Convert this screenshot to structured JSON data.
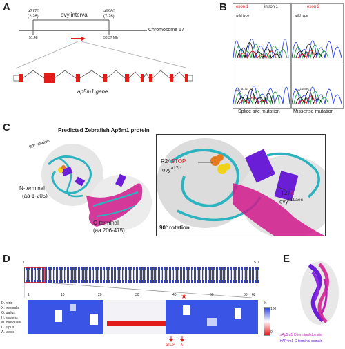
{
  "panelA": {
    "label": "A",
    "marker_left": "a7170",
    "marker_left_sub": "(2/26)",
    "marker_left_pos": "51.48",
    "interval_label": "ovy interval",
    "marker_right": "a9980",
    "marker_right_sub": "(7/26)",
    "marker_right_pos": "58.37 Mb",
    "chromosome": "Chromosome 17",
    "gene_label": "ap5m1 gene"
  },
  "panelB": {
    "label": "B",
    "exon1": "exon 1",
    "intron1": "intron 1",
    "exon2": "exon 2",
    "wild_type_1": "wild type",
    "wild_type_2": "wild type",
    "mut_1": "ovy",
    "mut_1_sup": "a17c",
    "mut_2": "ovy",
    "mut_2_sup": "c19aec",
    "caption_left": "Splice site mutation",
    "caption_right": "Missense mutation"
  },
  "panelC": {
    "label": "C",
    "title": "Predicted Zebrafish Ap5m1 protein",
    "rotation_small": "90º rotation",
    "n_terminal": "N-terminal",
    "n_range": "(aa 1-205)",
    "c_terminal": "C-terminal",
    "c_range": "(aa 206-475)",
    "r24_a": "R24",
    "r24_b": "STOP",
    "r24_mut": "ovy",
    "r24_sup": "a17c",
    "t27_a": "T27",
    "t27_b": "K",
    "t27_mut": "ovy",
    "t27_sup": "c19aec",
    "rotation_big": "90º rotation"
  },
  "panelD": {
    "label": "D",
    "left_end": "1",
    "right_end": "511",
    "ticks": [
      "1",
      "10",
      "20",
      "30",
      "40",
      "50",
      "60",
      "62"
    ],
    "species": [
      "D. rerio",
      "X. tropicalis",
      "G. gallus",
      "H. sapiens",
      "M. musculus",
      "C. lupus",
      "A. laevis"
    ],
    "stop_label": "STOP",
    "k_label": "K",
    "percent": "%",
    "scale_top": "100",
    "scale_bottom": "0",
    "star": "★"
  },
  "panelE": {
    "label": "E",
    "legend_1": "zAp5m1 C-terminal domain",
    "legend_2": "hAP4m1 C-terminal domain"
  },
  "colors": {
    "red": "#e21b1b",
    "cyan": "#2bb3c0",
    "magenta": "#d01a8c",
    "purple": "#6a1fd6",
    "blue": "#2a3fe0"
  }
}
